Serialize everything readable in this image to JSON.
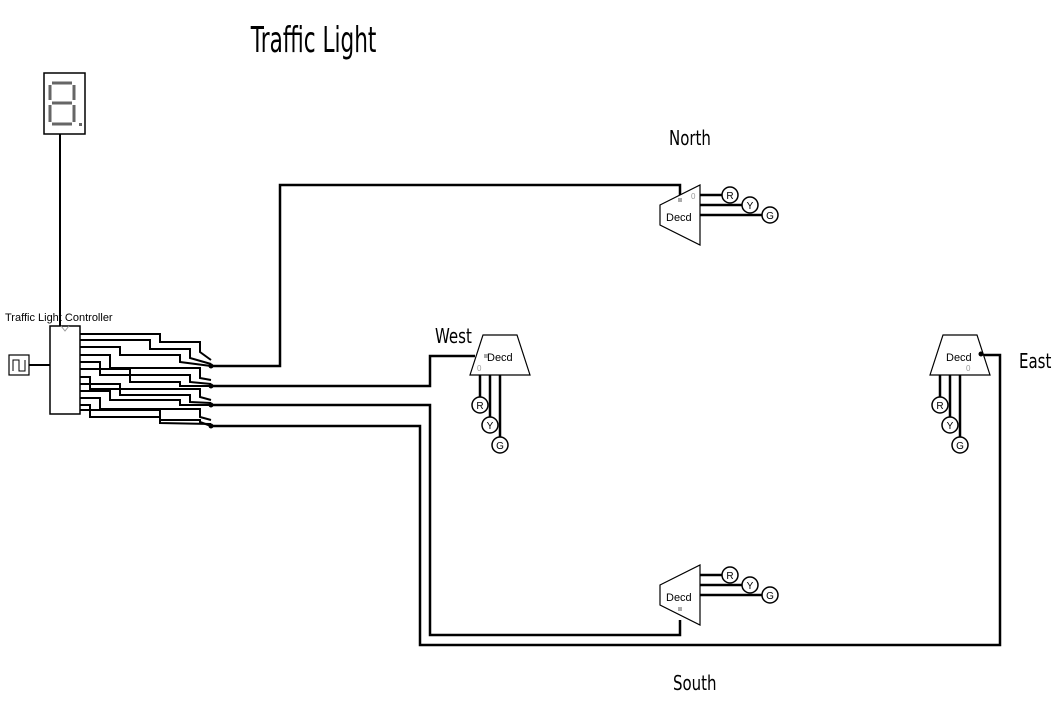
{
  "title": "Traffic Light",
  "controller_label": "Traffic Light Controller",
  "directions": {
    "north": "North",
    "west": "West",
    "east": "East",
    "south": "South"
  },
  "decoder_label": "Decd",
  "decoder_pin": "0",
  "lamp_labels": [
    "R",
    "Y",
    "G"
  ],
  "display_digit": "8",
  "colors": {
    "ink": "#000000",
    "segment": "#666666",
    "pin": "#aaaaaa"
  }
}
